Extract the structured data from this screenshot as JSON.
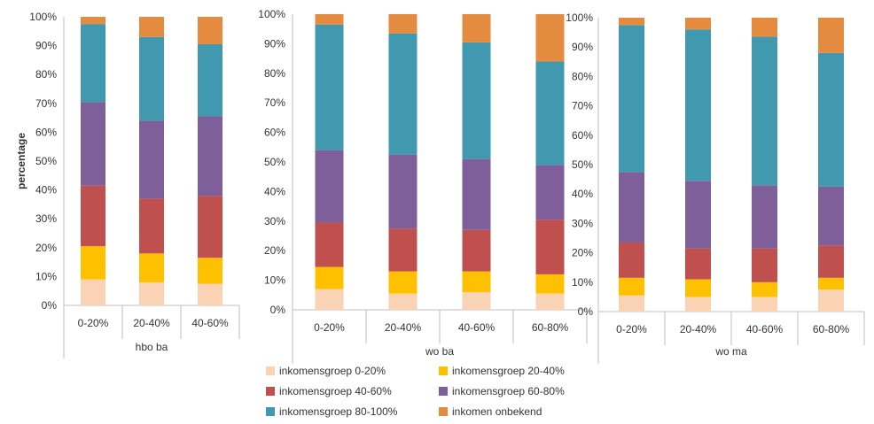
{
  "chart_data": {
    "type": "bar",
    "stacked": true,
    "ylabel": "percentage",
    "ylim": [
      0,
      100
    ],
    "yticks": [
      "0%",
      "10%",
      "20%",
      "30%",
      "40%",
      "50%",
      "60%",
      "70%",
      "80%",
      "90%",
      "100%"
    ],
    "series": [
      {
        "name": "inkomensgroep 0-20%",
        "color": "#FAD2B4"
      },
      {
        "name": "inkomensgroep 20-40%",
        "color": "#FFC000"
      },
      {
        "name": "inkomensgroep 40-60%",
        "color": "#C0504D"
      },
      {
        "name": "inkomensgroep 60-80%",
        "color": "#7F5F9A"
      },
      {
        "name": "inkomensgroep 80-100%",
        "color": "#4199B0"
      },
      {
        "name": "inkomen onbekend",
        "color": "#E48B3F"
      }
    ],
    "panels": [
      {
        "group": "hbo ba",
        "categories": [
          "0-20%",
          "20-40%",
          "40-60%"
        ],
        "stacks": [
          [
            9,
            11.5,
            21,
            29,
            27,
            2.5
          ],
          [
            8,
            10,
            19,
            27,
            29,
            7
          ],
          [
            7.5,
            9,
            21.5,
            27.5,
            25,
            9.5
          ]
        ]
      },
      {
        "group": "wo ba",
        "categories": [
          "0-20%",
          "20-40%",
          "40-60%",
          "60-80%"
        ],
        "stacks": [
          [
            7,
            7.5,
            15,
            24.5,
            42.5,
            3.5
          ],
          [
            5.5,
            7.5,
            14.5,
            25,
            41,
            6.5
          ],
          [
            6,
            7,
            14,
            24,
            39.5,
            9.5
          ],
          [
            5.5,
            6.5,
            18.5,
            18.5,
            35,
            16
          ]
        ]
      },
      {
        "group": "wo ma",
        "categories": [
          "0-20%",
          "20-40%",
          "40-60%",
          "60-80%"
        ],
        "stacks": [
          [
            5.5,
            6,
            12,
            24,
            50,
            2.5
          ],
          [
            5,
            6,
            10.5,
            23,
            51.5,
            4
          ],
          [
            5,
            5,
            11.5,
            21.5,
            50.5,
            6.5
          ],
          [
            7.5,
            4,
            11,
            20,
            45.5,
            12
          ]
        ]
      }
    ]
  }
}
